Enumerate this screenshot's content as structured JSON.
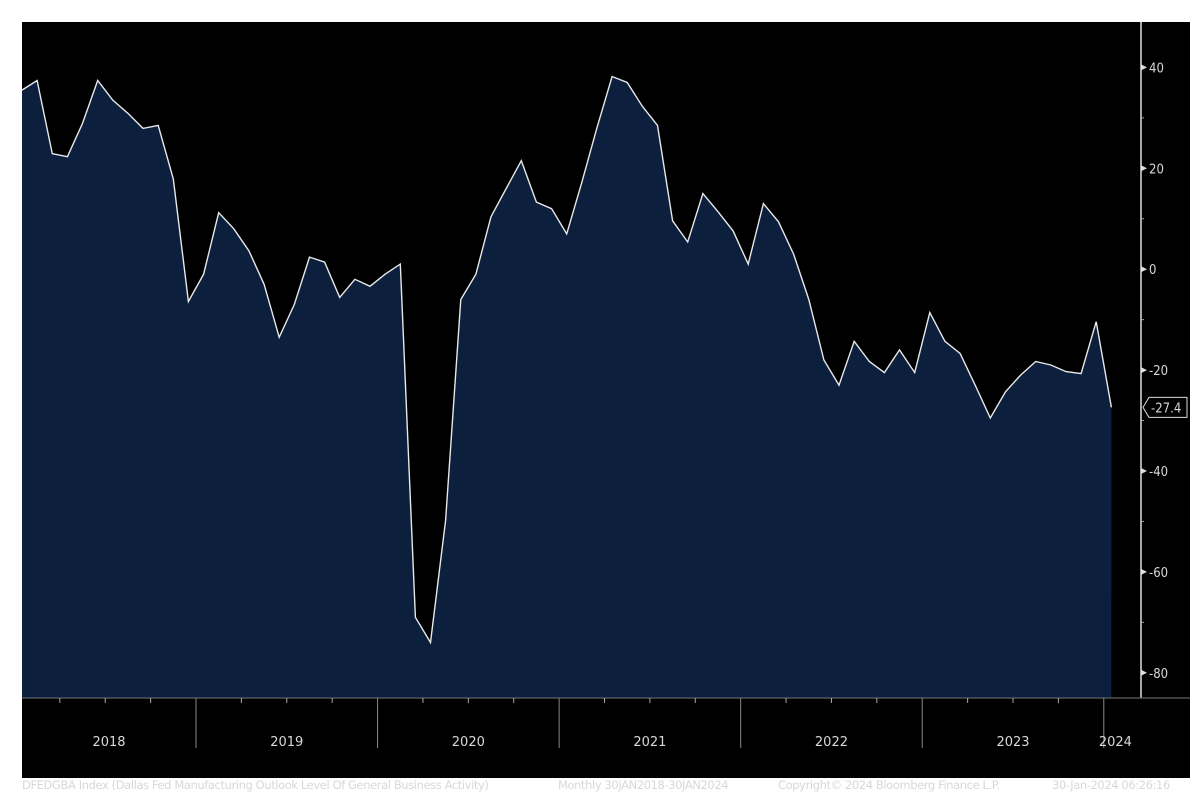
{
  "chart_data": {
    "type": "area",
    "title": "",
    "xlabel": "",
    "ylabel": "",
    "ylim": [
      -85,
      49
    ],
    "yticks": [
      40,
      20,
      0,
      -20,
      -40,
      -60,
      -80
    ],
    "year_labels": [
      "2018",
      "2019",
      "2020",
      "2021",
      "2022",
      "2023",
      "2024"
    ],
    "last_value_label": "-27.4",
    "grid": false,
    "colors": {
      "background": "#000000",
      "fill": "#0c1f3d",
      "line": "#e8e8e8",
      "text": "#d8d8d8"
    },
    "x": [
      "2018-01",
      "2018-02",
      "2018-03",
      "2018-04",
      "2018-05",
      "2018-06",
      "2018-07",
      "2018-08",
      "2018-09",
      "2018-10",
      "2018-11",
      "2018-12",
      "2019-01",
      "2019-02",
      "2019-03",
      "2019-04",
      "2019-05",
      "2019-06",
      "2019-07",
      "2019-08",
      "2019-09",
      "2019-10",
      "2019-11",
      "2019-12",
      "2020-01",
      "2020-02",
      "2020-03",
      "2020-04",
      "2020-05",
      "2020-06",
      "2020-07",
      "2020-08",
      "2020-09",
      "2020-10",
      "2020-11",
      "2020-12",
      "2021-01",
      "2021-02",
      "2021-03",
      "2021-04",
      "2021-05",
      "2021-06",
      "2021-07",
      "2021-08",
      "2021-09",
      "2021-10",
      "2021-11",
      "2021-12",
      "2022-01",
      "2022-02",
      "2022-03",
      "2022-04",
      "2022-05",
      "2022-06",
      "2022-07",
      "2022-08",
      "2022-09",
      "2022-10",
      "2022-11",
      "2022-12",
      "2023-01",
      "2023-02",
      "2023-03",
      "2023-04",
      "2023-05",
      "2023-06",
      "2023-07",
      "2023-08",
      "2023-09",
      "2023-10",
      "2023-11",
      "2023-12",
      "2024-01"
    ],
    "values": [
      35.5,
      37.4,
      22.9,
      22.3,
      28.9,
      37.4,
      33.5,
      30.9,
      27.9,
      28.5,
      17.9,
      -6.4,
      -1.0,
      11.2,
      8.0,
      3.6,
      -3.0,
      -13.5,
      -7.0,
      2.4,
      1.4,
      -5.6,
      -2.0,
      -3.4,
      -1.0,
      1.0,
      -69.0,
      -74.0,
      -49.8,
      -6.0,
      -1.0,
      10.4,
      16.0,
      21.5,
      13.3,
      12.0,
      7.0,
      17.2,
      28.0,
      38.2,
      37.0,
      32.3,
      28.5,
      9.6,
      5.4,
      15.0,
      11.4,
      7.6,
      1.0,
      13.0,
      9.4,
      3.0,
      -6.0,
      -18.0,
      -23.0,
      -14.3,
      -18.3,
      -20.5,
      -16.0,
      -20.5,
      -8.6,
      -14.3,
      -16.7,
      -23.0,
      -29.5,
      -24.3,
      -21.0,
      -18.3,
      -19.0,
      -20.3,
      -20.7,
      -10.4,
      -27.4
    ]
  },
  "footer": {
    "description": "DFEDGBA Index (Dallas Fed Manufacturing Outlook Level Of General Business Activity)",
    "range": "Monthly 30JAN2018-30JAN2024",
    "copyright": "Copyright© 2024 Bloomberg Finance L.P.",
    "timestamp": "30-Jan-2024 06:26:16"
  }
}
